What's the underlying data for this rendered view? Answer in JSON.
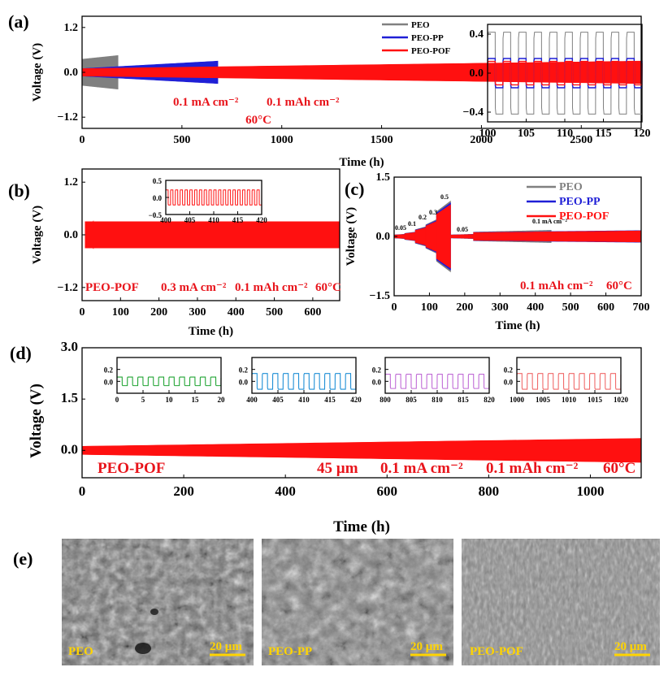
{
  "chart_data": [
    {
      "panel": "(a)",
      "type": "line",
      "xlabel": "Time (h)",
      "ylabel": "Voltage (V)",
      "xlim": [
        0,
        2800
      ],
      "ylim": [
        -1.5,
        1.5
      ],
      "xticks": [
        0,
        500,
        1000,
        1500,
        2000,
        2500
      ],
      "yticks": [
        -1.2,
        0.0,
        1.2
      ],
      "legend_position": "top-right",
      "series": [
        {
          "name": "PEO",
          "color": "#808080",
          "time_end": 180,
          "amplitude_start": 0.35,
          "amplitude_end": 0.45
        },
        {
          "name": "PEO-PP",
          "color": "#1f1fd6",
          "time_end": 680,
          "amplitude_start": 0.1,
          "amplitude_end": 0.3
        },
        {
          "name": "PEO-POF",
          "color": "#ff1010",
          "time_end": 2800,
          "amplitude_start": 0.1,
          "amplitude_end": 0.3
        }
      ],
      "annotations": [
        "0.1 mA cm⁻²",
        "0.1 mAh cm⁻²",
        "60°C"
      ]
    },
    {
      "panel": "(a) zoom",
      "type": "line",
      "xlim": [
        100,
        120
      ],
      "ylim": [
        -0.5,
        0.5
      ],
      "xticks": [
        100,
        105,
        110,
        115,
        120
      ],
      "yticks": [
        -0.4,
        0.0,
        0.4
      ],
      "period": 2,
      "series": [
        {
          "name": "PEO",
          "color": "#808080",
          "amplitude": 0.42
        },
        {
          "name": "PEO-PP",
          "color": "#1f1fd6",
          "amplitude": 0.15
        },
        {
          "name": "PEO-POF",
          "color": "#ff1010",
          "amplitude": 0.12
        }
      ]
    },
    {
      "panel": "(b)",
      "type": "line",
      "xlabel": "Time (h)",
      "ylabel": "Voltage (V)",
      "xlim": [
        0,
        670
      ],
      "ylim": [
        -1.5,
        1.5
      ],
      "xticks": [
        0,
        100,
        200,
        300,
        400,
        500,
        600
      ],
      "yticks": [
        -1.2,
        0.0,
        1.2
      ],
      "series": [
        {
          "name": "PEO-POF",
          "color": "#ff1010",
          "amplitude": 0.3
        }
      ],
      "annotations": [
        "PEO-POF",
        "0.3 mA cm⁻²",
        "0.1 mAh cm⁻²",
        "60°C"
      ],
      "inset": {
        "xlim": [
          400,
          420
        ],
        "ylim": [
          -0.5,
          0.5
        ],
        "xticks": [
          400,
          405,
          410,
          415,
          420
        ],
        "yticks": [
          -0.5,
          0.0,
          0.5
        ],
        "ytick_labels": [
          "−0.5",
          "0.0",
          "0.5"
        ],
        "amplitude": 0.22,
        "period": 1
      }
    },
    {
      "panel": "(c)",
      "type": "line",
      "xlabel": "Time (h)",
      "ylabel": "Voltage (V)",
      "xlim": [
        0,
        700
      ],
      "ylim": [
        -1.5,
        1.5
      ],
      "xticks": [
        0,
        100,
        200,
        300,
        400,
        500,
        600,
        700
      ],
      "yticks": [
        -1.5,
        0.0,
        1.5
      ],
      "legend_position": "top-right",
      "series": [
        {
          "name": "PEO",
          "color": "#808080"
        },
        {
          "name": "PEO-PP",
          "color": "#1f1fd6"
        },
        {
          "name": "PEO-POF",
          "color": "#ff1010"
        }
      ],
      "rate_steps": [
        {
          "label": "0.05",
          "t_start": 0,
          "t_end": 30,
          "amplitude": 0.05
        },
        {
          "label": "0.1",
          "t_start": 30,
          "t_end": 60,
          "amplitude": 0.1
        },
        {
          "label": "0.2",
          "t_start": 60,
          "t_end": 90,
          "amplitude": 0.22
        },
        {
          "label": "0.3",
          "t_start": 90,
          "t_end": 120,
          "amplitude": 0.38
        },
        {
          "label": "0.5",
          "t_start": 120,
          "t_end": 160,
          "amplitude": 0.8
        },
        {
          "label": "0.05",
          "t_start": 160,
          "t_end": 225,
          "amplitude": 0.05
        },
        {
          "label": "0.1 mA cm⁻²",
          "t_start": 225,
          "t_end": 700,
          "amplitude": 0.14
        }
      ],
      "annotations": [
        "0.1 mAh cm⁻²",
        "60°C"
      ]
    },
    {
      "panel": "(d)",
      "type": "line",
      "xlabel": "Time (h)",
      "ylabel": "Voltage (V)",
      "xlim": [
        0,
        1100
      ],
      "ylim": [
        -0.8,
        3.0
      ],
      "xticks": [
        0,
        200,
        400,
        600,
        800,
        1000
      ],
      "yticks": [
        0.0,
        1.5,
        3.0
      ],
      "series": [
        {
          "name": "PEO-POF",
          "color": "#ff1010",
          "amplitude_start": 0.12,
          "amplitude_end": 0.35
        }
      ],
      "annotations": [
        "PEO-POF",
        "45 µm",
        "0.1 mA cm⁻²",
        "0.1 mAh cm⁻²",
        "60°C"
      ],
      "insets": [
        {
          "xlim": [
            0,
            20
          ],
          "xticks": [
            0,
            5,
            10,
            15,
            20
          ],
          "color": "#22a535",
          "amplitude": 0.12
        },
        {
          "xlim": [
            400,
            420
          ],
          "xticks": [
            400,
            405,
            410,
            415,
            420
          ],
          "color": "#1e8fd6",
          "amplitude": 0.22
        },
        {
          "xlim": [
            800,
            820
          ],
          "xticks": [
            800,
            805,
            810,
            815,
            820
          ],
          "color": "#c06bd6",
          "amplitude": 0.2
        },
        {
          "xlim": [
            1000,
            1020
          ],
          "xticks": [
            1000,
            1005,
            1010,
            1015,
            1020
          ],
          "color": "#f06a6a",
          "amplitude": 0.22
        }
      ],
      "inset_ylim": [
        -0.2,
        0.4
      ],
      "inset_yticks": [
        0.0,
        0.2
      ],
      "inset_ytick_labels": [
        "0.0",
        "0.2"
      ]
    }
  ],
  "panel_labels": {
    "a": "(a)",
    "b": "(b)",
    "c": "(c)",
    "d": "(d)",
    "e": "(e)"
  },
  "sem": [
    {
      "label": "PEO",
      "scale": "20 µm"
    },
    {
      "label": "PEO-PP",
      "scale": "20 µm"
    },
    {
      "label": "PEO-POF",
      "scale": "20 µm"
    }
  ]
}
